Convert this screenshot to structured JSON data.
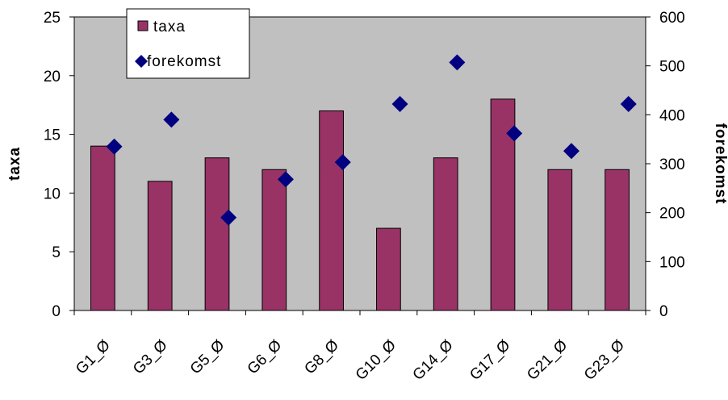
{
  "chart_data": {
    "type": "bar",
    "categories": [
      "G1_Ø",
      "G3_Ø",
      "G5_Ø",
      "G6_Ø",
      "G8_Ø",
      "G10_Ø",
      "G14_Ø",
      "G17_Ø",
      "G21_Ø",
      "G23_Ø"
    ],
    "series": [
      {
        "name": "taxa",
        "type": "bar",
        "axis": "left",
        "color": "#993366",
        "values": [
          14,
          11,
          13,
          12,
          17,
          7,
          13,
          18,
          12,
          12
        ]
      },
      {
        "name": "forekomst",
        "type": "scatter",
        "marker": "diamond",
        "axis": "right",
        "color": "#000080",
        "values": [
          335,
          390,
          190,
          268,
          303,
          422,
          507,
          362,
          326,
          422
        ]
      }
    ],
    "ylabel": "taxa",
    "y2label": "forekomst",
    "ylim": [
      0,
      25
    ],
    "y2lim": [
      0,
      600
    ],
    "yticks": [
      "0",
      "5",
      "10",
      "15",
      "20",
      "25"
    ],
    "y2ticks": [
      "0",
      "100",
      "200",
      "300",
      "400",
      "500",
      "600"
    ],
    "plot_background": "#c0c0c0",
    "grid": false,
    "legend_position": "top-left",
    "legend": [
      "taxa",
      "forekomst"
    ]
  }
}
